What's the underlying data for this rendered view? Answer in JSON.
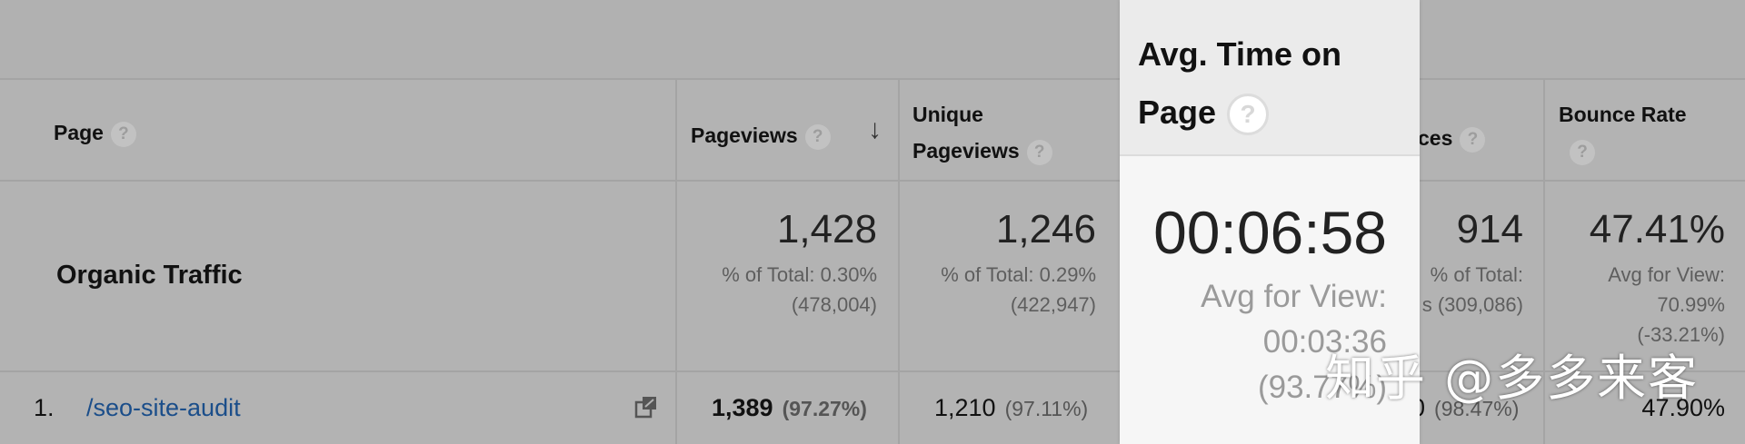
{
  "columns": {
    "page": "Page",
    "pageviews": "Pageviews",
    "unique_pageviews_line1": "Unique",
    "unique_pageviews_line2": "Pageviews",
    "avg_time_line1": "Avg. Time on",
    "avg_time_line2": "Page",
    "entrances_partial": "ces",
    "bounce_rate": "Bounce Rate",
    "help_glyph": "?",
    "sort_glyph": "↓"
  },
  "summary": {
    "label": "Organic Traffic",
    "pageviews": {
      "value": "1,428",
      "sub1": "% of Total: 0.30%",
      "sub2": "(478,004)"
    },
    "unique": {
      "value": "1,246",
      "sub1": "% of Total: 0.29%",
      "sub2": "(422,947)"
    },
    "avg_time": {
      "value": "00:06:58",
      "sub1": "Avg for View:",
      "sub2": "00:03:36",
      "sub3": "(93.77%)"
    },
    "entrances": {
      "value": "914",
      "sub1": "% of Total:",
      "sub2": "(309,086)",
      "sub_prefix": "s"
    },
    "bounce": {
      "value": "47.41%",
      "sub1": "Avg for View:",
      "sub2": "70.99%",
      "sub3": "(-33.21%)"
    }
  },
  "rows": [
    {
      "index": "1.",
      "page": "/seo-site-audit",
      "pageviews": "1,389",
      "pageviews_pct": "(97.27%)",
      "unique": "1,210",
      "unique_pct": "(97.11%)",
      "entrances_partial": "0",
      "entrances_pct": "(98.47%)",
      "bounce": "47.90%"
    }
  ],
  "watermark": "知乎 @多多来客",
  "colors": {
    "link": "#1b4e8a",
    "highlight_bg": "#f6f6f6"
  },
  "icons": [
    "help-icon",
    "sort-desc-icon",
    "external-link-icon"
  ]
}
